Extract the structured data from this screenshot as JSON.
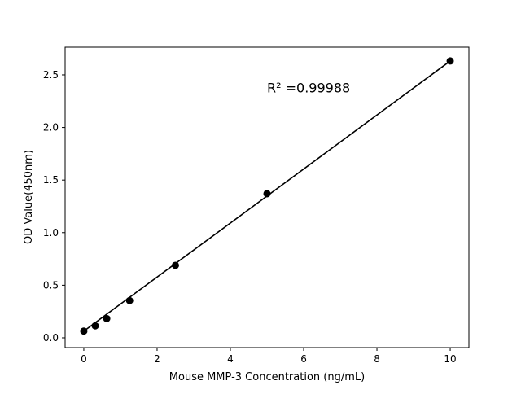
{
  "chart_data": {
    "type": "scatter",
    "title": "",
    "xlabel": "Mouse MMP-3 Concentration (ng/mL)",
    "ylabel": "OD Value(450nm)",
    "xlim": [
      -0.51,
      10.51
    ],
    "ylim": [
      -0.093,
      2.763
    ],
    "xticks": [
      0,
      2,
      4,
      6,
      8,
      10
    ],
    "xtick_labels": [
      "0",
      "2",
      "4",
      "6",
      "8",
      "10"
    ],
    "yticks": [
      0.0,
      0.5,
      1.0,
      1.5,
      2.0,
      2.5
    ],
    "ytick_labels": [
      "0.0",
      "0.5",
      "1.0",
      "1.5",
      "2.0",
      "2.5"
    ],
    "grid": false,
    "x": [
      0,
      0.3125,
      0.625,
      1.25,
      2.5,
      5,
      10
    ],
    "y": [
      0.064,
      0.114,
      0.183,
      0.354,
      0.689,
      1.37,
      2.632
    ],
    "fit_line": {
      "slope": 0.2568,
      "intercept": 0.064,
      "x_range": [
        0,
        10
      ]
    },
    "annotation": {
      "text": "R² =0.99988",
      "x": 5,
      "y": 2.38
    },
    "colors": {
      "points": "#000000",
      "line": "#000000"
    }
  }
}
